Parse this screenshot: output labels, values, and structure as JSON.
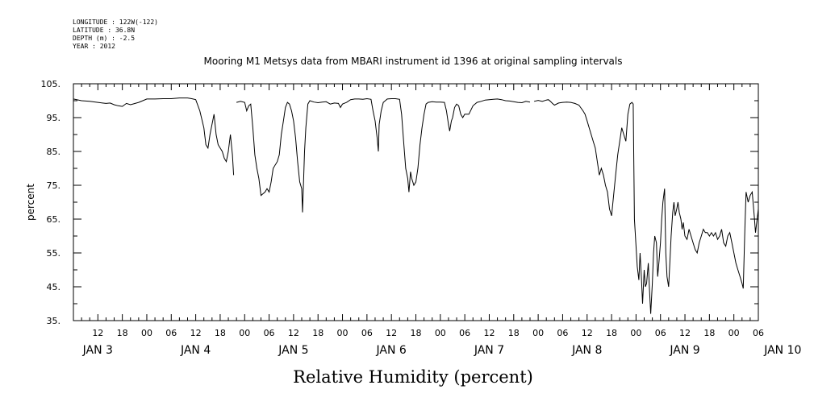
{
  "header": {
    "longitude": "LONGITUDE : 122W(-122)",
    "latitude": "LATITUDE : 36.8N",
    "depth": "DEPTH (m) : -2.5",
    "year": "YEAR : 2012"
  },
  "chart_data": {
    "type": "line",
    "title": "Mooring M1 Metsys data from MBARI instrument id 1396 at original sampling intervals",
    "xlabel": "Relative Humidity (percent)",
    "ylabel": "percent",
    "ylim": [
      35,
      105
    ],
    "yticks": [
      35,
      45,
      55,
      65,
      75,
      85,
      95,
      105
    ],
    "y_tick_labels": [
      "35.",
      "45.",
      "55.",
      "65.",
      "75.",
      "85.",
      "95.",
      "105."
    ],
    "x_unit": "hours since JAN 3 00:00, 2012",
    "xlim": [
      6,
      174
    ],
    "hour_tick_labels": [
      "12",
      "18",
      "00",
      "06",
      "12",
      "18",
      "00",
      "06",
      "12",
      "18",
      "00",
      "06",
      "12",
      "18",
      "00",
      "06",
      "12",
      "18",
      "00",
      "06",
      "12",
      "18",
      "00",
      "06",
      "12",
      "18",
      "00",
      "06"
    ],
    "day_labels": [
      "JAN  3",
      "JAN  4",
      "JAN  5",
      "JAN  6",
      "JAN  7",
      "JAN  8",
      "JAN  9",
      "JAN 10"
    ],
    "grid": false,
    "series": [
      {
        "segments": [
          [
            [
              6,
              100.5
            ],
            [
              8,
              100
            ],
            [
              10,
              99.8
            ],
            [
              12,
              99.5
            ],
            [
              14,
              99.2
            ],
            [
              15,
              99.3
            ],
            [
              16,
              98.8
            ],
            [
              17,
              98.5
            ],
            [
              18,
              98.3
            ],
            [
              19,
              99.2
            ],
            [
              20,
              98.8
            ],
            [
              22,
              99.5
            ],
            [
              24,
              100.5
            ],
            [
              26,
              100.5
            ],
            [
              28,
              100.6
            ],
            [
              30,
              100.6
            ],
            [
              32,
              100.8
            ],
            [
              34,
              100.8
            ],
            [
              35,
              100.6
            ],
            [
              36,
              100.3
            ],
            [
              37,
              97
            ],
            [
              38,
              92
            ],
            [
              38.5,
              87
            ],
            [
              39,
              86
            ],
            [
              39.5,
              90
            ],
            [
              40,
              93
            ],
            [
              40.5,
              96
            ],
            [
              41,
              90
            ],
            [
              41.5,
              87
            ],
            [
              42,
              86
            ],
            [
              42.5,
              85
            ],
            [
              43,
              83
            ],
            [
              43.5,
              82
            ],
            [
              44,
              85
            ],
            [
              44.5,
              90
            ],
            [
              45,
              84
            ],
            [
              45.3,
              78
            ]
          ],
          [
            [
              46,
              99.5
            ],
            [
              47,
              99.8
            ],
            [
              48,
              99.5
            ],
            [
              48.5,
              97
            ],
            [
              49,
              98.5
            ],
            [
              49.5,
              99
            ],
            [
              50,
              92
            ],
            [
              50.5,
              84
            ],
            [
              51,
              80
            ],
            [
              51.5,
              77
            ],
            [
              52,
              72
            ],
            [
              53,
              73
            ],
            [
              53.5,
              74
            ],
            [
              54,
              73
            ],
            [
              54.5,
              76
            ],
            [
              55,
              80
            ],
            [
              56,
              82
            ],
            [
              56.5,
              84
            ],
            [
              57,
              90
            ],
            [
              57.5,
              94
            ],
            [
              58,
              98
            ],
            [
              58.5,
              99.5
            ],
            [
              59,
              99
            ],
            [
              59.5,
              97
            ],
            [
              60,
              94
            ],
            [
              60.5,
              89
            ],
            [
              61,
              82
            ],
            [
              61.5,
              76
            ],
            [
              62,
              74
            ],
            [
              62.2,
              67
            ],
            [
              62.7,
              85
            ],
            [
              63,
              92
            ],
            [
              63.5,
              99
            ],
            [
              64,
              100
            ],
            [
              65,
              99.6
            ],
            [
              66,
              99.4
            ],
            [
              67,
              99.6
            ],
            [
              68,
              99.7
            ],
            [
              69,
              99
            ],
            [
              70,
              99.3
            ],
            [
              71,
              99.2
            ],
            [
              71.5,
              98
            ],
            [
              72,
              99
            ],
            [
              73,
              99.5
            ],
            [
              74,
              100.3
            ],
            [
              75,
              100.5
            ],
            [
              76,
              100.5
            ],
            [
              77,
              100.4
            ],
            [
              78,
              100.6
            ],
            [
              79,
              100.4
            ],
            [
              79.5,
              97
            ],
            [
              80,
              94
            ],
            [
              80.5,
              89
            ],
            [
              80.8,
              85
            ],
            [
              81,
              93
            ],
            [
              81.5,
              97
            ],
            [
              82,
              99.5
            ],
            [
              83,
              100.5
            ],
            [
              84,
              100.6
            ],
            [
              85,
              100.6
            ],
            [
              86,
              100.4
            ],
            [
              86.5,
              96
            ],
            [
              87,
              88
            ],
            [
              87.5,
              80
            ],
            [
              88,
              77
            ],
            [
              88.3,
              73
            ],
            [
              88.7,
              79
            ],
            [
              89,
              77
            ],
            [
              89.5,
              75
            ],
            [
              90,
              76
            ],
            [
              90.5,
              80
            ],
            [
              91,
              87
            ],
            [
              91.5,
              92
            ],
            [
              92,
              96
            ],
            [
              92.5,
              99
            ],
            [
              93,
              99.5
            ],
            [
              94,
              99.7
            ],
            [
              95,
              99.6
            ],
            [
              96,
              99.6
            ],
            [
              97,
              99.5
            ],
            [
              97.5,
              97
            ],
            [
              98,
              93
            ],
            [
              98.3,
              91
            ],
            [
              98.7,
              94
            ],
            [
              99,
              95
            ],
            [
              99.5,
              98
            ],
            [
              100,
              99
            ],
            [
              100.5,
              98.5
            ],
            [
              101,
              96
            ],
            [
              101.5,
              95
            ],
            [
              102,
              96
            ],
            [
              103,
              96
            ],
            [
              104,
              98.5
            ],
            [
              105,
              99.5
            ],
            [
              106,
              99.8
            ],
            [
              107,
              100.2
            ],
            [
              108,
              100.3
            ],
            [
              109,
              100.4
            ],
            [
              110,
              100.5
            ],
            [
              111,
              100.3
            ],
            [
              112,
              100
            ],
            [
              113,
              99.9
            ],
            [
              114,
              99.7
            ],
            [
              115,
              99.5
            ],
            [
              116,
              99.4
            ],
            [
              117,
              99.8
            ],
            [
              118,
              99.6
            ]
          ],
          [
            [
              119,
              99.8
            ],
            [
              120,
              100.1
            ],
            [
              121,
              99.8
            ],
            [
              122,
              100.2
            ],
            [
              122.5,
              100.3
            ],
            [
              123,
              99.8
            ],
            [
              123.5,
              99.2
            ],
            [
              124,
              98.7
            ],
            [
              125,
              99.3
            ],
            [
              126,
              99.5
            ],
            [
              127,
              99.6
            ],
            [
              128,
              99.5
            ],
            [
              129,
              99.2
            ],
            [
              130,
              98.7
            ],
            [
              131,
              97
            ],
            [
              131.5,
              96
            ],
            [
              132,
              94
            ],
            [
              132.5,
              92
            ],
            [
              133,
              90
            ],
            [
              133.5,
              88
            ],
            [
              134,
              86
            ],
            [
              134.5,
              82
            ],
            [
              135,
              78
            ],
            [
              135.5,
              80
            ],
            [
              136,
              78
            ],
            [
              136.5,
              75
            ],
            [
              137,
              73
            ],
            [
              137.5,
              68
            ],
            [
              138,
              66
            ],
            [
              138.5,
              72
            ],
            [
              139,
              78
            ],
            [
              139.5,
              84
            ],
            [
              140,
              88
            ],
            [
              140.5,
              92
            ],
            [
              141,
              90
            ],
            [
              141.5,
              88
            ],
            [
              142,
              96
            ],
            [
              142.5,
              99
            ],
            [
              143,
              99.5
            ],
            [
              143.3,
              99
            ],
            [
              143.6,
              65
            ],
            [
              144,
              57
            ],
            [
              144.3,
              51
            ],
            [
              144.7,
              47
            ],
            [
              145,
              55
            ],
            [
              145.3,
              48
            ],
            [
              145.6,
              40
            ],
            [
              146,
              50
            ],
            [
              146.3,
              45
            ],
            [
              146.6,
              46
            ],
            [
              147,
              52
            ],
            [
              147.3,
              44
            ],
            [
              147.6,
              37
            ],
            [
              148,
              46
            ],
            [
              148.3,
              55
            ],
            [
              148.6,
              60
            ],
            [
              149,
              58
            ],
            [
              149.3,
              48
            ],
            [
              149.6,
              52
            ],
            [
              150,
              58
            ],
            [
              150.3,
              65
            ],
            [
              150.6,
              70
            ],
            [
              151,
              74
            ],
            [
              151.3,
              55
            ],
            [
              151.6,
              48
            ],
            [
              152,
              45
            ],
            [
              152.3,
              52
            ],
            [
              152.6,
              60
            ],
            [
              153,
              67
            ],
            [
              153.3,
              70
            ],
            [
              153.6,
              66
            ],
            [
              154,
              68
            ],
            [
              154.3,
              70
            ],
            [
              154.6,
              67
            ],
            [
              155,
              65
            ],
            [
              155.3,
              62
            ],
            [
              155.6,
              64
            ],
            [
              156,
              60
            ],
            [
              156.5,
              59
            ],
            [
              157,
              62
            ],
            [
              157.5,
              60
            ],
            [
              158,
              58
            ],
            [
              158.5,
              56
            ],
            [
              159,
              55
            ],
            [
              159.5,
              58
            ],
            [
              160,
              60
            ],
            [
              160.5,
              62
            ],
            [
              161,
              61
            ],
            [
              161.5,
              61
            ],
            [
              162,
              60
            ],
            [
              162.5,
              61
            ],
            [
              163,
              60
            ],
            [
              163.5,
              61
            ],
            [
              164,
              59
            ],
            [
              164.5,
              60
            ],
            [
              165,
              62
            ],
            [
              165.5,
              58
            ],
            [
              166,
              57
            ],
            [
              166.5,
              60
            ],
            [
              167,
              61
            ],
            [
              167.5,
              58
            ],
            [
              168,
              55
            ],
            [
              168.5,
              52
            ],
            [
              169,
              50
            ],
            [
              169.5,
              48
            ],
            [
              170,
              46
            ],
            [
              170.3,
              44.5
            ],
            [
              170.7,
              62
            ],
            [
              171,
              73
            ],
            [
              171.5,
              70
            ],
            [
              172,
              72
            ],
            [
              172.5,
              73
            ],
            [
              173,
              66
            ],
            [
              173.3,
              61
            ],
            [
              173.7,
              65
            ],
            [
              174,
              68
            ]
          ]
        ]
      }
    ]
  }
}
